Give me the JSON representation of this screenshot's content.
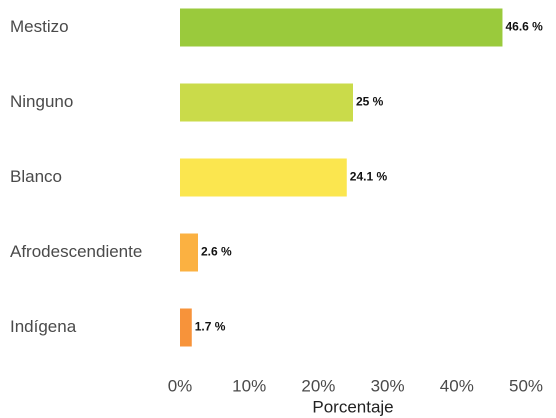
{
  "chart_data": {
    "type": "bar",
    "orientation": "horizontal",
    "categories": [
      "Mestizo",
      "Ninguno",
      "Blanco",
      "Afrodescendiente",
      "Indígena"
    ],
    "values": [
      46.6,
      25,
      24.1,
      2.6,
      1.7
    ],
    "value_labels": [
      "46.6 %",
      "25 %",
      "24.1 %",
      "2.6 %",
      "1.7 %"
    ],
    "colors": [
      "#9aca3c",
      "#cadb4a",
      "#fbe64f",
      "#fbb141",
      "#f7933a"
    ],
    "xlabel": "Porcentaje",
    "xlim": [
      0,
      50
    ],
    "xticks": [
      {
        "value": 0,
        "label": "0%"
      },
      {
        "value": 10,
        "label": "10%"
      },
      {
        "value": 20,
        "label": "20%"
      },
      {
        "value": 30,
        "label": "30%"
      },
      {
        "value": 40,
        "label": "40%"
      },
      {
        "value": 50,
        "label": "50%"
      }
    ],
    "grid": false
  }
}
